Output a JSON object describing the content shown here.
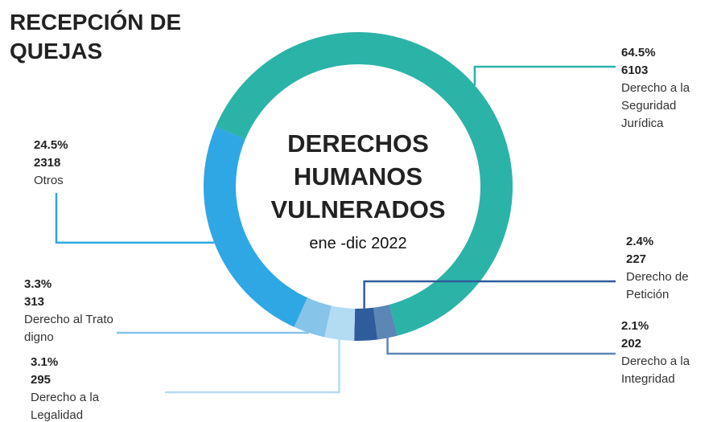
{
  "chart_data": {
    "type": "pie",
    "title": "RECEPCIÓN DE QUEJAS",
    "center_title": "DERECHOS HUMANOS VULNERADOS",
    "subtitle": "ene -dic 2022",
    "categories": [
      "Derecho a la Seguridad Jurídica",
      "Derecho a la Integridad",
      "Derecho de Petición",
      "Derecho a la Legalidad",
      "Derecho al Trato digno",
      "Otros"
    ],
    "values": [
      64.5,
      2.1,
      2.4,
      3.1,
      3.3,
      24.5
    ],
    "value_labels": [
      "64.5%",
      "2.1%",
      "2.4%",
      "3.1%",
      "3.3%",
      "24.5%"
    ],
    "counts": [
      6103,
      202,
      227,
      295,
      313,
      2318
    ],
    "colors": [
      "#2bb3a8",
      "#5b86b5",
      "#2f5d9b",
      "#b3dcf3",
      "#86c4ea",
      "#2fa7e4"
    ]
  }
}
